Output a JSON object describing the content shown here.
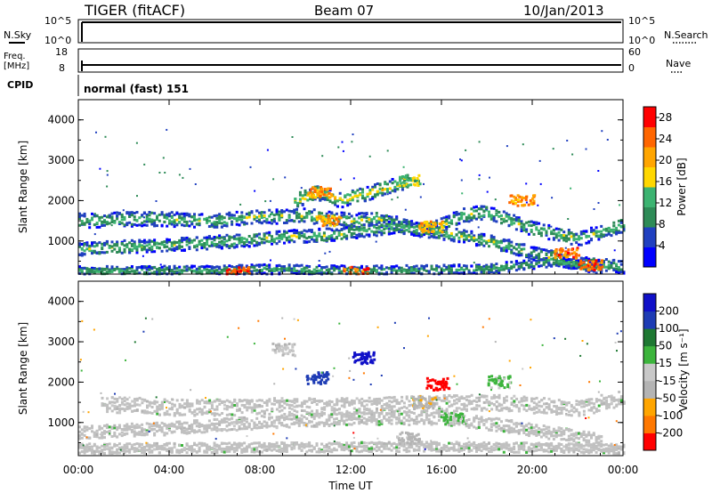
{
  "header": {
    "radar": "TIGER (fitACF)",
    "beam": "Beam 07",
    "date": "10/Jan/2013"
  },
  "top_panels": {
    "nsky_label": "N.Sky",
    "nsky_ticks": [
      "10^5",
      "10^0"
    ],
    "nsearch_label": "N.Search",
    "nsearch_ticks": [
      "10^5",
      "10^0"
    ],
    "freq_label_1": "Freq.",
    "freq_label_2": "[MHz]",
    "freq_ticks": [
      "18",
      "8"
    ],
    "nave_label": "Nave",
    "nave_ticks": [
      "60",
      "0"
    ],
    "cpid_label": "CPID",
    "cpid_value": "normal (fast) 151"
  },
  "colors": {
    "power_scale": [
      "#0000ff",
      "#2040c0",
      "#2e8b57",
      "#3cb371",
      "#ffd700",
      "#ffa500",
      "#ff6600",
      "#ff0000"
    ],
    "velocity_scale": [
      "#1010c8",
      "#1e3cb4",
      "#1e7832",
      "#3cb43c",
      "#c8c8c8",
      "#b4b4b4",
      "#ffa500",
      "#ff7800",
      "#ff0000"
    ],
    "ground_scatter": "#c0c0c0"
  },
  "chart_data": [
    {
      "type": "heatmap",
      "title": "",
      "xlabel": "",
      "ylabel": "Slant Range [km]",
      "ylim": [
        180,
        4500
      ],
      "yticks": [
        "1000",
        "2000",
        "3000",
        "4000"
      ],
      "colorbar_label": "Power [dB]",
      "colorbar_ticks": [
        "4",
        "8",
        "12",
        "16",
        "20",
        "24",
        "28"
      ],
      "colorbar_range": [
        0,
        30
      ],
      "bands": [
        {
          "points": [
            [
              0,
              1500
            ],
            [
              3,
              1550
            ],
            [
              6,
              1500
            ],
            [
              8,
              1600
            ],
            [
              10,
              1620
            ],
            [
              12,
              1500
            ],
            [
              13,
              1550
            ],
            [
              15,
              1300
            ],
            [
              16,
              1400
            ],
            [
              17,
              1650
            ],
            [
              18,
              1700
            ],
            [
              20,
              1300
            ],
            [
              22,
              1050
            ],
            [
              24,
              1400
            ]
          ],
          "width": 220,
          "value": 14
        },
        {
          "points": [
            [
              0,
              800
            ],
            [
              4,
              900
            ],
            [
              7,
              1000
            ],
            [
              9,
              1100
            ],
            [
              11,
              1150
            ],
            [
              14,
              1350
            ],
            [
              16,
              1200
            ],
            [
              18,
              1000
            ],
            [
              20,
              700
            ],
            [
              22,
              450
            ],
            [
              24,
              350
            ]
          ],
          "width": 200,
          "value": 14
        },
        {
          "points": [
            [
              9.5,
              2000
            ],
            [
              10.5,
              2200
            ],
            [
              11.5,
              2000
            ],
            [
              13.5,
              2300
            ],
            [
              14.5,
              2500
            ]
          ],
          "width": 220,
          "value": 18
        },
        {
          "points": [
            [
              0,
              250
            ],
            [
              6,
              260
            ],
            [
              8,
              300
            ],
            [
              12,
              260
            ],
            [
              18,
              300
            ],
            [
              21,
              500
            ],
            [
              23,
              300
            ]
          ],
          "width": 150,
          "value": 12
        }
      ],
      "hotspots": [
        {
          "x": 10.6,
          "y": 2200,
          "value": 26
        },
        {
          "x": 11.0,
          "y": 1500,
          "value": 24
        },
        {
          "x": 15.5,
          "y": 1350,
          "value": 24
        },
        {
          "x": 19.5,
          "y": 2000,
          "value": 26
        },
        {
          "x": 21.5,
          "y": 700,
          "value": 28
        },
        {
          "x": 22.5,
          "y": 400,
          "value": 28
        },
        {
          "x": 7.0,
          "y": 220,
          "value": 28
        },
        {
          "x": 12.2,
          "y": 220,
          "value": 28
        },
        {
          "x": 14.5,
          "y": 2500,
          "value": 18
        }
      ]
    },
    {
      "type": "heatmap",
      "title": "",
      "xlabel": "Time UT",
      "ylabel": "Slant Range [km]",
      "ylim": [
        180,
        4500
      ],
      "yticks": [
        "1000",
        "2000",
        "3000",
        "4000"
      ],
      "xticks": [
        "00:00",
        "04:00",
        "08:00",
        "12:00",
        "16:00",
        "20:00",
        "00:00"
      ],
      "xlim": [
        0,
        24
      ],
      "colorbar_label": "Velocity [m s⁻¹]",
      "colorbar_ticks": [
        "200",
        "100",
        "50",
        "15",
        "-15",
        "-50",
        "-100",
        "-200"
      ],
      "colorbar_range": [
        -250,
        250
      ],
      "ground_scatter_bands": [
        {
          "points": [
            [
              1,
              1450
            ],
            [
              5,
              1350
            ],
            [
              8,
              1400
            ],
            [
              12,
              1400
            ],
            [
              15,
              1450
            ],
            [
              18,
              1500
            ],
            [
              22,
              1350
            ],
            [
              24,
              1600
            ]
          ],
          "width": 250
        },
        {
          "points": [
            [
              0,
              750
            ],
            [
              4,
              850
            ],
            [
              8,
              1000
            ],
            [
              12,
              1100
            ],
            [
              16,
              1100
            ],
            [
              19,
              900
            ],
            [
              23,
              550
            ]
          ],
          "width": 200
        },
        {
          "points": [
            [
              0,
              350
            ],
            [
              8,
              380
            ],
            [
              16,
              400
            ],
            [
              24,
              350
            ]
          ],
          "width": 150
        }
      ],
      "patches": [
        {
          "x": 12.5,
          "y": 2600,
          "value": 220
        },
        {
          "x": 10.5,
          "y": 2100,
          "value": 180
        },
        {
          "x": 15.2,
          "y": 1500,
          "value": -70
        },
        {
          "x": 15.8,
          "y": 1950,
          "value": -230
        },
        {
          "x": 16.5,
          "y": 1100,
          "value": 40
        },
        {
          "x": 18.5,
          "y": 2000,
          "value": 40
        },
        {
          "x": 14.5,
          "y": 600,
          "value": -40
        },
        {
          "x": 9.0,
          "y": 2800,
          "value": -20
        }
      ]
    }
  ]
}
